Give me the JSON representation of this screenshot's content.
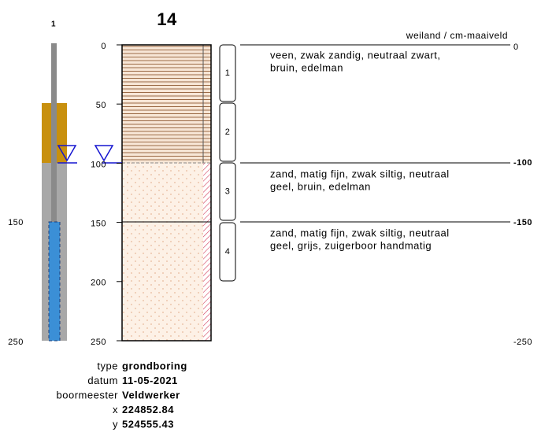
{
  "title": "14",
  "well": {
    "label": "1",
    "depth_labels": [
      "150",
      "250"
    ]
  },
  "depth_ticks": [
    0,
    50,
    100,
    150,
    200,
    250
  ],
  "samples": [
    "1",
    "2",
    "3",
    "4"
  ],
  "header": "weiland / cm-maaiveld",
  "layers": [
    {
      "lines": [
        "veen, zwak zandig, neutraal zwart,",
        "bruin, edelman"
      ]
    },
    {
      "lines": [
        "zand, matig fijn, zwak siltig, neutraal",
        "geel, bruin, edelman"
      ]
    },
    {
      "lines": [
        "zand, matig fijn, zwak siltig, neutraal",
        "geel, grijs, zuigerboor handmatig"
      ]
    }
  ],
  "levels": [
    "0",
    "-100",
    "-150",
    "-250"
  ],
  "meta": [
    {
      "label": "type",
      "value": "grondboring"
    },
    {
      "label": "datum",
      "value": "11-05-2021"
    },
    {
      "label": "boormeester",
      "value": "Veldwerker"
    },
    {
      "label": "x",
      "value": "224852.84"
    },
    {
      "label": "y",
      "value": "524555.43"
    }
  ]
}
